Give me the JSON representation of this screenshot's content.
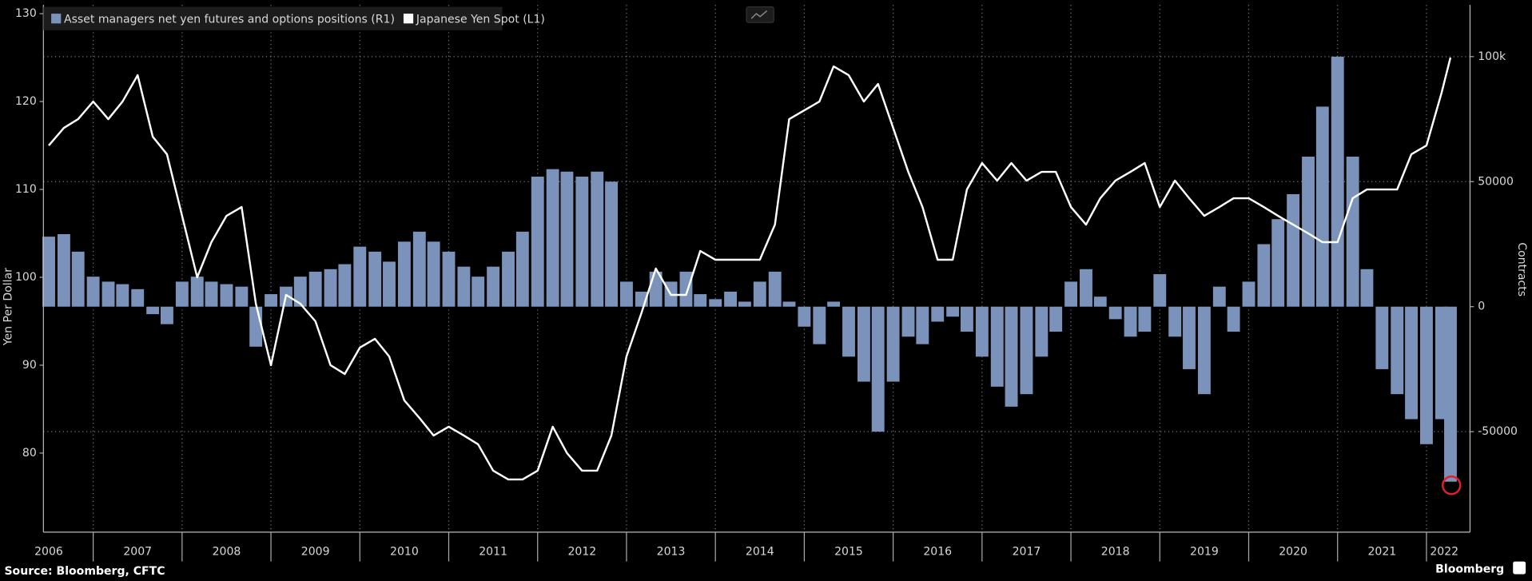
{
  "chart_data": {
    "type": "bar",
    "source": "Source: Bloomberg, CFTC",
    "brand": "Bloomberg",
    "ylabel": "Yen Per Dollar",
    "y2label": "Contracts",
    "x": [
      2006.5,
      2006.67,
      2006.83,
      2007,
      2007.17,
      2007.33,
      2007.5,
      2007.67,
      2007.83,
      2008,
      2008.17,
      2008.33,
      2008.5,
      2008.67,
      2008.83,
      2009,
      2009.17,
      2009.33,
      2009.5,
      2009.67,
      2009.83,
      2010,
      2010.17,
      2010.33,
      2010.5,
      2010.67,
      2010.83,
      2011,
      2011.17,
      2011.33,
      2011.5,
      2011.67,
      2011.83,
      2012,
      2012.17,
      2012.33,
      2012.5,
      2012.67,
      2012.83,
      2013,
      2013.17,
      2013.33,
      2013.5,
      2013.67,
      2013.83,
      2014,
      2014.17,
      2014.33,
      2014.5,
      2014.67,
      2014.83,
      2015,
      2015.17,
      2015.33,
      2015.5,
      2015.67,
      2015.83,
      2016,
      2016.17,
      2016.33,
      2016.5,
      2016.67,
      2016.83,
      2017,
      2017.17,
      2017.33,
      2017.5,
      2017.67,
      2017.83,
      2018,
      2018.17,
      2018.33,
      2018.5,
      2018.67,
      2018.83,
      2019,
      2019.17,
      2019.33,
      2019.5,
      2019.67,
      2019.83,
      2020,
      2020.17,
      2020.33,
      2020.5,
      2020.67,
      2020.83,
      2021,
      2021.17,
      2021.33,
      2021.5,
      2021.67,
      2021.83,
      2022,
      2022.17,
      2022.27
    ],
    "series": [
      {
        "name": "Asset managers net yen futures and options positions (R1)",
        "type": "bar",
        "axis": "y2",
        "color": "#7b93ba",
        "values": [
          28000,
          29000,
          22000,
          12000,
          10000,
          9000,
          7000,
          -3000,
          -7000,
          10000,
          12000,
          10000,
          9000,
          8000,
          -16000,
          5000,
          8000,
          12000,
          14000,
          15000,
          17000,
          24000,
          22000,
          18000,
          26000,
          30000,
          26000,
          22000,
          16000,
          12000,
          16000,
          22000,
          30000,
          52000,
          55000,
          54000,
          52000,
          54000,
          50000,
          10000,
          6000,
          14000,
          10000,
          14000,
          5000,
          3000,
          6000,
          2000,
          10000,
          14000,
          2000,
          -8000,
          -15000,
          2000,
          -20000,
          -30000,
          -50000,
          -30000,
          -12000,
          -15000,
          -6000,
          -4000,
          -10000,
          -20000,
          -32000,
          -40000,
          -35000,
          -20000,
          -10000,
          10000,
          15000,
          4000,
          -5000,
          -12000,
          -10000,
          13000,
          -12000,
          -25000,
          -35000,
          8000,
          -10000,
          10000,
          25000,
          35000,
          45000,
          60000,
          80000,
          100000,
          60000,
          15000,
          -25000,
          -35000,
          -45000,
          -55000,
          -45000,
          -70000
        ]
      },
      {
        "name": "Japanese Yen Spot  (L1)",
        "type": "line",
        "axis": "y",
        "color": "#ffffff",
        "values": [
          115,
          117,
          118,
          120,
          118,
          120,
          123,
          116,
          114,
          107,
          100,
          104,
          107,
          108,
          97,
          90,
          98,
          97,
          95,
          90,
          89,
          92,
          93,
          91,
          86,
          84,
          82,
          83,
          82,
          81,
          78,
          77,
          77,
          78,
          83,
          80,
          78,
          78,
          82,
          91,
          96,
          101,
          98,
          98,
          103,
          102,
          102,
          102,
          102,
          106,
          118,
          119,
          120,
          124,
          123,
          120,
          122,
          117,
          112,
          108,
          102,
          102,
          110,
          113,
          111,
          113,
          111,
          112,
          112,
          108,
          106,
          109,
          111,
          112,
          113,
          108,
          111,
          109,
          107,
          108,
          109,
          109,
          108,
          107,
          106,
          105,
          104,
          104,
          109,
          110,
          110,
          110,
          114,
          115,
          121,
          125
        ]
      }
    ],
    "xlim": [
      2006.44,
      2022.49
    ],
    "xgrid": [
      2007,
      2008,
      2009,
      2010,
      2011,
      2012,
      2013,
      2014,
      2015,
      2016,
      2017,
      2018,
      2019,
      2020,
      2021,
      2022
    ],
    "xticks": [
      {
        "value": 2006.5,
        "label": "2006"
      },
      {
        "value": 2007.5,
        "label": "2007"
      },
      {
        "value": 2008.5,
        "label": "2008"
      },
      {
        "value": 2009.5,
        "label": "2009"
      },
      {
        "value": 2010.5,
        "label": "2010"
      },
      {
        "value": 2011.5,
        "label": "2011"
      },
      {
        "value": 2012.5,
        "label": "2012"
      },
      {
        "value": 2013.5,
        "label": "2013"
      },
      {
        "value": 2014.5,
        "label": "2014"
      },
      {
        "value": 2015.5,
        "label": "2015"
      },
      {
        "value": 2016.5,
        "label": "2016"
      },
      {
        "value": 2017.5,
        "label": "2017"
      },
      {
        "value": 2018.5,
        "label": "2018"
      },
      {
        "value": 2019.5,
        "label": "2019"
      },
      {
        "value": 2020.5,
        "label": "2020"
      },
      {
        "value": 2021.5,
        "label": "2021"
      },
      {
        "value": 2022.2,
        "label": "2022"
      }
    ],
    "ylim": [
      71,
      131
    ],
    "yticks": [
      80,
      90,
      100,
      110,
      120,
      130
    ],
    "y2lim": [
      -90200,
      120700
    ],
    "y2ticks": [
      -50000,
      0,
      50000,
      {
        "value": 100000,
        "label": "100k"
      }
    ],
    "grid": true,
    "legend": "top-left"
  }
}
